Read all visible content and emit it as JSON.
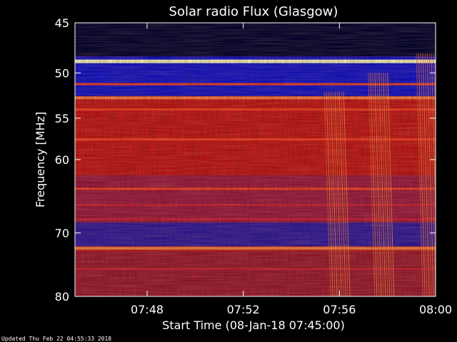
{
  "chart_data": {
    "type": "heatmap",
    "title": "Solar radio Flux (Glasgow)",
    "xlabel": "Start Time (08-Jan-18 07:45:00)",
    "ylabel": "Frequency [MHz]",
    "xlim": [
      "07:45:00",
      "08:00:00"
    ],
    "ylim": [
      45,
      80
    ],
    "y_scale": "log",
    "y_inverted": true,
    "x_ticks": [
      "07:48",
      "07:52",
      "07:56",
      "08:00"
    ],
    "y_ticks": [
      45,
      50,
      55,
      60,
      70,
      80
    ],
    "colormap": [
      "#000030",
      "#1010d0",
      "#d01010",
      "#ff8040",
      "#ffffc0"
    ],
    "horizontal_bands_mhz": [
      {
        "freq": 48.8,
        "level": "very high"
      },
      {
        "freq": 51.2,
        "level": "medium"
      },
      {
        "freq": 52.7,
        "level": "high"
      },
      {
        "freq": 54.0,
        "level": "medium"
      },
      {
        "freq": 57.5,
        "level": "medium"
      },
      {
        "freq": 63.8,
        "level": "medium"
      },
      {
        "freq": 66.0,
        "level": "low"
      },
      {
        "freq": 68.0,
        "level": "low"
      },
      {
        "freq": 72.3,
        "level": "high"
      },
      {
        "freq": 75.5,
        "level": "low"
      }
    ],
    "burst_features": [
      {
        "time": "07:55:40",
        "freq_range": [
          52,
          80
        ],
        "description": "drifting striations"
      },
      {
        "time": "07:57:30",
        "freq_range": [
          50,
          80
        ],
        "description": "fine structure"
      },
      {
        "time": "07:59:30",
        "freq_range": [
          48,
          80
        ],
        "description": "fine structure"
      }
    ]
  },
  "footer": "Updated Thu Feb 22 04:55:33 2018"
}
